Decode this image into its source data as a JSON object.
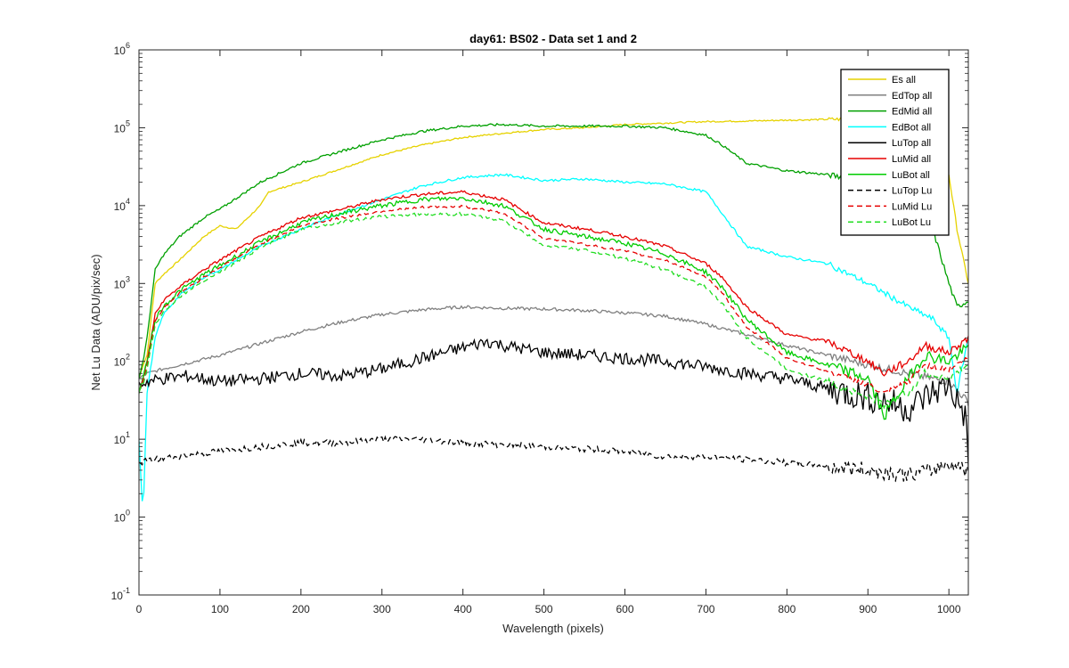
{
  "chart_data": {
    "type": "line",
    "title": "day61: BS02 - Data set 1 and 2",
    "xlabel": "Wavelength (pixels)",
    "ylabel": "Net Lu Data (ADU/pix/sec)",
    "xlim": [
      0,
      1024
    ],
    "ylim": [
      0.1,
      1000000
    ],
    "yscale": "log",
    "grid": false,
    "legend_position": "top-right",
    "x_ticks": [
      0,
      100,
      200,
      300,
      400,
      500,
      600,
      700,
      800,
      900,
      1000
    ],
    "x_tick_labels": [
      "0",
      "100",
      "200",
      "300",
      "400",
      "500",
      "600",
      "700",
      "800",
      "900",
      "1000"
    ],
    "y_ticks": [
      0.1,
      1,
      10,
      100,
      1000,
      10000,
      100000,
      1000000
    ],
    "y_tick_labels": [
      {
        "base": "10",
        "exp": "-1"
      },
      {
        "base": "10",
        "exp": "0"
      },
      {
        "base": "10",
        "exp": "1"
      },
      {
        "base": "10",
        "exp": "2"
      },
      {
        "base": "10",
        "exp": "3"
      },
      {
        "base": "10",
        "exp": "4"
      },
      {
        "base": "10",
        "exp": "5"
      },
      {
        "base": "10",
        "exp": "6"
      }
    ],
    "series": [
      {
        "name": "Es  all",
        "color": "#e6d200",
        "dash": "solid",
        "x": [
          0,
          5,
          10,
          20,
          30,
          50,
          80,
          100,
          120,
          150,
          160,
          200,
          250,
          300,
          350,
          400,
          450,
          500,
          550,
          600,
          650,
          700,
          750,
          800,
          850,
          900,
          950,
          1000,
          1010,
          1024
        ],
        "values": [
          60,
          90,
          120,
          1000,
          1300,
          2000,
          4000,
          5500,
          5000,
          10000,
          15000,
          20000,
          30000,
          45000,
          60000,
          75000,
          85000,
          95000,
          100000,
          110000,
          115000,
          120000,
          122000,
          125000,
          128000,
          130000,
          125000,
          25000,
          5000,
          1000
        ]
      },
      {
        "name": "EdTop  all",
        "color": "#808080",
        "dash": "solid",
        "x": [
          0,
          10,
          30,
          60,
          100,
          150,
          200,
          250,
          300,
          350,
          400,
          450,
          500,
          550,
          600,
          650,
          700,
          750,
          800,
          850,
          900,
          950,
          980,
          1000,
          1024
        ],
        "values": [
          60,
          70,
          80,
          95,
          120,
          170,
          240,
          320,
          400,
          460,
          500,
          480,
          470,
          450,
          420,
          380,
          300,
          220,
          160,
          120,
          90,
          70,
          60,
          55,
          30
        ]
      },
      {
        "name": "EdMid  all",
        "color": "#00a000",
        "dash": "solid",
        "x": [
          0,
          5,
          10,
          20,
          30,
          50,
          80,
          100,
          150,
          200,
          250,
          300,
          350,
          400,
          450,
          500,
          550,
          600,
          650,
          700,
          720,
          750,
          800,
          850,
          900,
          950,
          980,
          1000,
          1010,
          1024
        ],
        "values": [
          60,
          100,
          200,
          1500,
          2300,
          4000,
          7000,
          9000,
          20000,
          35000,
          50000,
          70000,
          90000,
          105000,
          110000,
          105000,
          105000,
          105000,
          100000,
          80000,
          60000,
          35000,
          28000,
          25000,
          20000,
          15000,
          5000,
          1000,
          500,
          600
        ]
      },
      {
        "name": "EdBot  all",
        "color": "#00ffff",
        "dash": "solid",
        "x": [
          0,
          5,
          10,
          20,
          30,
          50,
          80,
          100,
          150,
          200,
          250,
          300,
          350,
          400,
          450,
          500,
          550,
          600,
          650,
          700,
          720,
          750,
          800,
          850,
          900,
          950,
          980,
          1000,
          1010,
          1024
        ],
        "values": [
          10,
          1,
          40,
          200,
          400,
          700,
          1200,
          1500,
          3000,
          5000,
          8000,
          12000,
          18000,
          23000,
          25000,
          21000,
          22000,
          20000,
          19000,
          15000,
          8000,
          3000,
          2200,
          1800,
          1000,
          500,
          350,
          200,
          40,
          200
        ]
      },
      {
        "name": "LuTop  all",
        "color": "#000000",
        "dash": "solid",
        "x": [
          0,
          10,
          30,
          60,
          100,
          150,
          200,
          250,
          300,
          350,
          400,
          430,
          450,
          500,
          550,
          600,
          650,
          700,
          750,
          800,
          850,
          900,
          950,
          980,
          1000,
          1020,
          1024
        ],
        "values": [
          50,
          55,
          60,
          65,
          55,
          60,
          70,
          65,
          80,
          110,
          150,
          180,
          160,
          130,
          120,
          110,
          100,
          85,
          70,
          60,
          45,
          35,
          25,
          40,
          50,
          20,
          5
        ]
      },
      {
        "name": "LuMid  all",
        "color": "#e60000",
        "dash": "solid",
        "x": [
          0,
          5,
          10,
          20,
          30,
          50,
          80,
          100,
          150,
          200,
          250,
          300,
          350,
          400,
          450,
          500,
          550,
          600,
          650,
          700,
          720,
          750,
          800,
          850,
          900,
          920,
          950,
          970,
          1000,
          1024
        ],
        "values": [
          40,
          60,
          100,
          400,
          600,
          900,
          1500,
          2000,
          4000,
          7000,
          9000,
          12000,
          14000,
          15000,
          12000,
          6000,
          5000,
          4000,
          3000,
          1800,
          1200,
          500,
          220,
          180,
          100,
          70,
          100,
          160,
          130,
          200
        ]
      },
      {
        "name": "LuBot  all",
        "color": "#00cc00",
        "dash": "solid",
        "x": [
          0,
          5,
          10,
          20,
          30,
          50,
          80,
          100,
          150,
          200,
          250,
          300,
          350,
          400,
          450,
          500,
          550,
          600,
          650,
          700,
          720,
          750,
          800,
          850,
          900,
          920,
          950,
          970,
          1000,
          1024
        ],
        "values": [
          40,
          60,
          100,
          350,
          500,
          800,
          1300,
          1700,
          3400,
          6000,
          8000,
          10000,
          12000,
          12500,
          10000,
          5000,
          4000,
          3300,
          2400,
          1400,
          900,
          350,
          130,
          90,
          60,
          20,
          60,
          120,
          100,
          150
        ]
      },
      {
        "name": "LuTop  Lu",
        "color": "#000000",
        "dash": "dashed",
        "x": [
          0,
          20,
          50,
          100,
          150,
          200,
          250,
          300,
          350,
          400,
          450,
          500,
          550,
          600,
          650,
          700,
          750,
          800,
          850,
          900,
          950,
          980,
          1000,
          1024
        ],
        "values": [
          5,
          5.5,
          6,
          7,
          8,
          9,
          9,
          10,
          10,
          9,
          8.5,
          8,
          7.5,
          7,
          6,
          6,
          5.5,
          5,
          4.5,
          4,
          3.5,
          4,
          5,
          4
        ]
      },
      {
        "name": "LuMid  Lu",
        "color": "#e60000",
        "dash": "dashed",
        "x": [
          0,
          5,
          10,
          20,
          30,
          50,
          80,
          100,
          150,
          200,
          250,
          300,
          350,
          400,
          450,
          500,
          550,
          600,
          650,
          700,
          720,
          750,
          800,
          850,
          900,
          920,
          950,
          970,
          1000,
          1024
        ],
        "values": [
          40,
          55,
          90,
          330,
          480,
          750,
          1200,
          1600,
          3200,
          5500,
          7000,
          8500,
          9500,
          9800,
          8000,
          3800,
          3200,
          2600,
          2000,
          1200,
          750,
          280,
          110,
          75,
          50,
          38,
          55,
          90,
          80,
          110
        ]
      },
      {
        "name": "LuBot  Lu",
        "color": "#22dd22",
        "dash": "dashed",
        "x": [
          0,
          5,
          10,
          20,
          30,
          50,
          80,
          100,
          150,
          200,
          250,
          300,
          350,
          400,
          450,
          500,
          550,
          600,
          650,
          700,
          720,
          750,
          800,
          850,
          900,
          920,
          950,
          970,
          1000,
          1024
        ],
        "values": [
          40,
          50,
          80,
          300,
          430,
          680,
          1100,
          1400,
          2900,
          5000,
          6200,
          7200,
          7800,
          7800,
          6500,
          3100,
          2700,
          2100,
          1500,
          900,
          550,
          200,
          80,
          55,
          35,
          28,
          40,
          70,
          60,
          90
        ]
      }
    ]
  }
}
